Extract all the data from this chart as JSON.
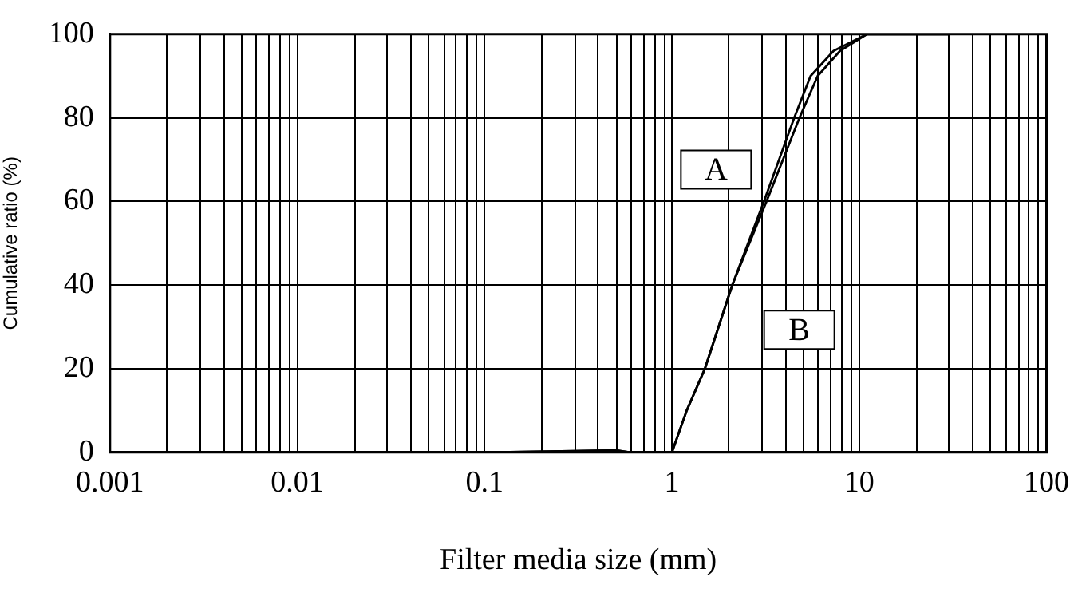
{
  "chart_data": {
    "type": "line",
    "xlabel": "Filter media size (mm)",
    "ylabel": "Cumulative ratio (%)",
    "log": "x",
    "xlim": [
      0.001,
      100
    ],
    "xticks": [
      0.001,
      0.01,
      0.1,
      1,
      10,
      100
    ],
    "ylim": [
      0,
      100
    ],
    "yticks": [
      0,
      20,
      40,
      60,
      80,
      100
    ],
    "grid": true,
    "legend": false,
    "marker": "none",
    "line_style": "solid",
    "series": [
      {
        "name": "A",
        "color": "#000000",
        "x": [
          0.015,
          0.1,
          0.3,
          0.5,
          0.6,
          1.0,
          1.2,
          1.5,
          2.1,
          3.1,
          4.5,
          5.5,
          7.3,
          11,
          30
        ],
        "values": [
          0,
          0,
          0.3,
          0.5,
          0,
          0,
          10,
          20,
          40,
          60,
          80,
          90,
          96,
          100,
          100
        ]
      },
      {
        "name": "B",
        "color": "#000000",
        "x": [
          0.015,
          0.1,
          0.3,
          0.5,
          0.6,
          1.0,
          1.2,
          1.5,
          2.1,
          3.2,
          4.8,
          6.0,
          7.9,
          11,
          30
        ],
        "values": [
          0,
          0,
          0.3,
          0.5,
          0,
          0,
          10,
          20,
          40,
          60,
          80,
          90,
          96,
          100,
          100
        ]
      }
    ]
  }
}
